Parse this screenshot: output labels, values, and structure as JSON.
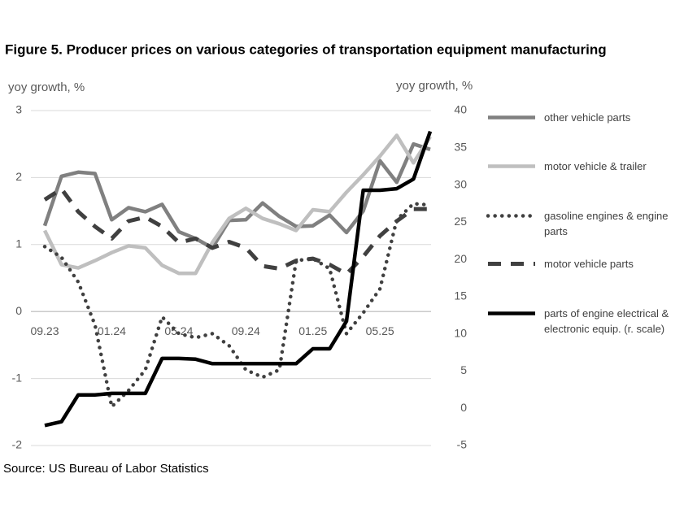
{
  "chart_data": {
    "type": "line",
    "title": "Figure 5. Producer prices on various categories of transportation equipment manufacturing",
    "y_label": "yoy growth, %",
    "y2_label": "yoy growth, %",
    "source": "Source: US Bureau of Labor Statistics",
    "categories": [
      "09.23",
      null,
      null,
      null,
      "01.24",
      null,
      null,
      null,
      "05.24",
      null,
      null,
      null,
      "09.24",
      null,
      null,
      null,
      "01.25",
      null,
      null,
      null,
      "05.25",
      null,
      null,
      null
    ],
    "ylim": [
      -2,
      3
    ],
    "yticks": [
      -2,
      -1,
      0,
      1,
      2,
      3
    ],
    "y2lim": [
      -5,
      40
    ],
    "y2ticks": [
      -5,
      0,
      5,
      10,
      15,
      20,
      25,
      30,
      35,
      40
    ],
    "grid": true,
    "legend": "right",
    "series": [
      {
        "name": "other vehicle parts",
        "color": "#808080",
        "style": "solid",
        "values": [
          1.28,
          2.02,
          2.08,
          2.06,
          1.37,
          1.55,
          1.49,
          1.6,
          1.19,
          1.09,
          0.95,
          1.36,
          1.37,
          1.62,
          1.42,
          1.27,
          1.28,
          1.44,
          1.18,
          1.5,
          2.25,
          1.93,
          2.5,
          2.42
        ]
      },
      {
        "name": "motor vehicle & trailer",
        "color": "#bfbfbf",
        "style": "solid",
        "values": [
          1.21,
          0.7,
          0.65,
          0.76,
          0.88,
          0.98,
          0.95,
          0.69,
          0.57,
          0.57,
          1.03,
          1.39,
          1.54,
          1.39,
          1.31,
          1.21,
          1.52,
          1.49,
          1.78,
          2.04,
          2.32,
          2.63,
          2.22,
          2.61
        ]
      },
      {
        "name": "gasoline engines & engine parts",
        "color": "#404040",
        "style": "dotted",
        "values": [
          0.97,
          0.81,
          0.44,
          -0.2,
          -1.42,
          -1.18,
          -0.87,
          -0.08,
          -0.33,
          -0.39,
          -0.33,
          -0.51,
          -0.87,
          -0.98,
          -0.87,
          0.76,
          0.79,
          0.64,
          -0.33,
          -0.02,
          0.34,
          1.37,
          1.61,
          1.59
        ]
      },
      {
        "name": "motor vehicle parts",
        "color": "#404040",
        "style": "dashed",
        "values": [
          1.67,
          1.83,
          1.49,
          1.27,
          1.09,
          1.35,
          1.41,
          1.27,
          1.03,
          1.09,
          0.95,
          1.04,
          0.95,
          0.68,
          0.64,
          0.76,
          0.79,
          0.7,
          0.56,
          0.82,
          1.13,
          1.35,
          1.53,
          1.53
        ]
      },
      {
        "name": "parts of engine electrical & electronic equip. (r. scale)",
        "color": "#000000",
        "style": "solid",
        "axis": "y2",
        "values": [
          -2.3,
          -1.8,
          1.8,
          1.8,
          2.0,
          2.0,
          2.0,
          6.7,
          6.7,
          6.6,
          6.0,
          6.0,
          6.0,
          6.0,
          6.0,
          6.0,
          8.0,
          8.0,
          11.7,
          29.3,
          29.3,
          29.5,
          30.8,
          37.2
        ]
      }
    ]
  }
}
